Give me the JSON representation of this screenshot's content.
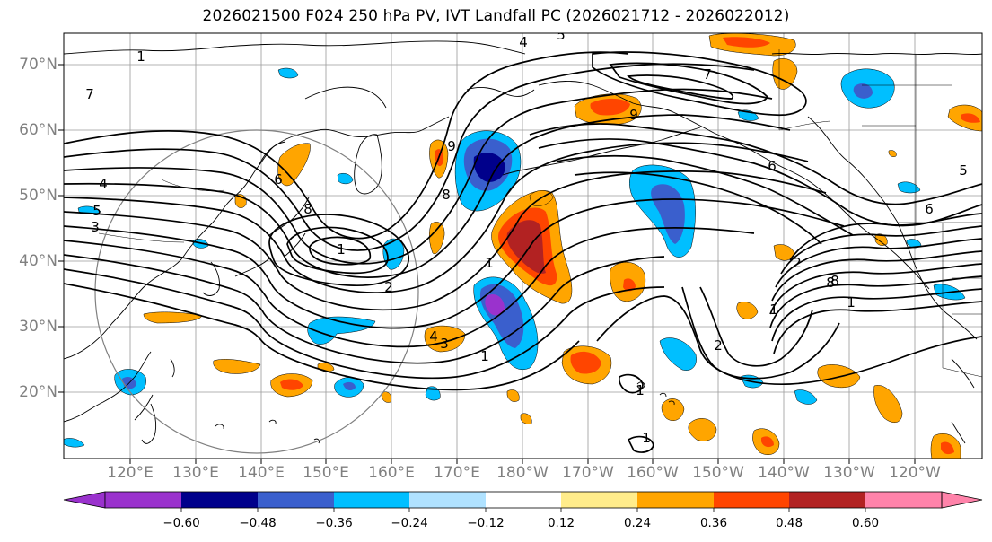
{
  "title": "2026021500 F024 250 hPa PV, IVT Landfall PC (2026021712 - 2026022012)",
  "map": {
    "lat_labels": [
      "70°N",
      "60°N",
      "50°N",
      "40°N",
      "30°N",
      "20°N"
    ],
    "lon_labels": [
      "120°E",
      "130°E",
      "140°E",
      "150°E",
      "160°E",
      "170°E",
      "180°W",
      "170°W",
      "160°W",
      "150°W",
      "140°W",
      "130°W",
      "120°W"
    ],
    "contour_labels": [
      "1",
      "7",
      "4",
      "5",
      "3",
      "4",
      "5",
      "8",
      "1",
      "2",
      "6",
      "9",
      "8",
      "7",
      "6",
      "5",
      "6",
      "9",
      "8",
      "2",
      "1",
      "8",
      "1",
      "1",
      "4",
      "3",
      "1",
      "2",
      "1",
      "1"
    ]
  },
  "colorbar": {
    "tick_labels": [
      "−0.60",
      "−0.48",
      "−0.36",
      "−0.24",
      "−0.12",
      "0.12",
      "0.24",
      "0.36",
      "0.48",
      "0.60"
    ],
    "colors": {
      "below": "#9a32cd",
      "bins": [
        "#9a32cd",
        "#00008b",
        "#3a5fcd",
        "#00bfff",
        "#b0e2ff",
        "#ffffff",
        "#ffec8b",
        "#ffa500",
        "#ff4500",
        "#b22222",
        "#ff83aa"
      ],
      "above": "#ff83aa"
    }
  }
}
